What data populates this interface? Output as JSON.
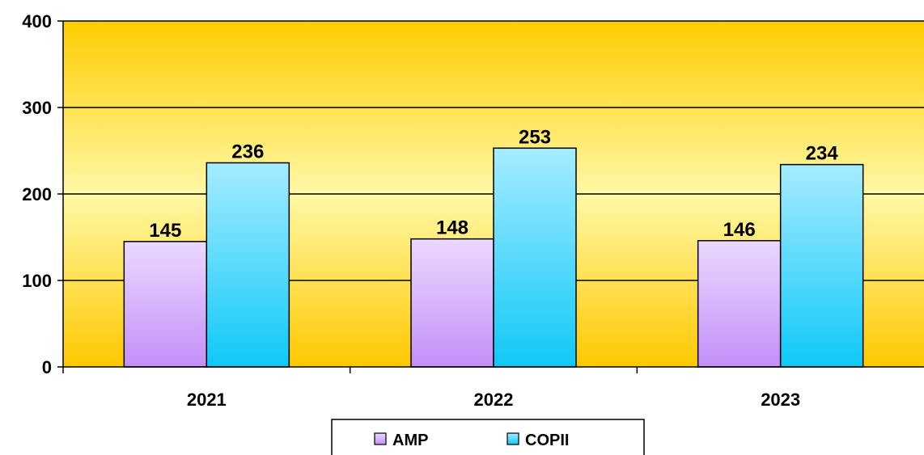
{
  "chart_data": {
    "type": "bar",
    "categories": [
      "2021",
      "2022",
      "2023"
    ],
    "series": [
      {
        "name": "AMP",
        "values": [
          145,
          148,
          146
        ],
        "color_top": "#EBD9FF",
        "color_bottom": "#C38FF8"
      },
      {
        "name": "COPII",
        "values": [
          236,
          253,
          234
        ],
        "color_top": "#A6ECFF",
        "color_bottom": "#0FC8F8"
      }
    ],
    "ylim": [
      0,
      400
    ],
    "yticks": [
      0,
      100,
      200,
      300,
      400
    ],
    "grid": true,
    "legend_position": "bottom",
    "plot_background": {
      "top": "#FFCC00",
      "middle": "#FFF9A6",
      "bottom": "#FFC800"
    }
  }
}
